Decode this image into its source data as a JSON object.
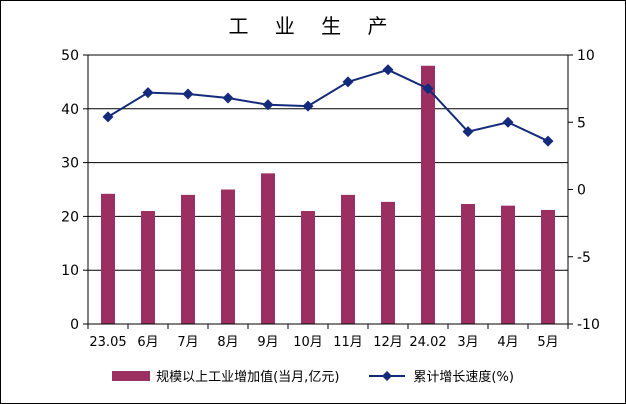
{
  "chart_data": {
    "type": "bar+line",
    "title": "工 业 生 产",
    "categories": [
      "23.05",
      "6月",
      "7月",
      "8月",
      "9月",
      "10月",
      "11月",
      "12月",
      "24.02",
      "3月",
      "4月",
      "5月"
    ],
    "series": [
      {
        "name": "规模以上工业增加值(当月,亿元)",
        "type": "bar",
        "axis": "left",
        "color": "#9b2f62",
        "values": [
          24.2,
          21.0,
          24.0,
          25.0,
          28.0,
          21.0,
          24.0,
          22.7,
          48.0,
          22.3,
          22.0,
          21.2
        ]
      },
      {
        "name": "累计增长速度(%)",
        "type": "line",
        "axis": "right",
        "color": "#142a7a",
        "values": [
          5.4,
          7.2,
          7.1,
          6.8,
          6.3,
          6.2,
          8.0,
          8.9,
          7.5,
          4.3,
          5.0,
          3.6
        ]
      }
    ],
    "ylim_left": [
      0,
      50
    ],
    "yticks_left": [
      0,
      10,
      20,
      30,
      40,
      50
    ],
    "ylim_right": [
      -10,
      10
    ],
    "yticks_right": [
      -10,
      -5,
      0,
      5,
      10
    ],
    "grid": true,
    "legend_position": "bottom"
  }
}
